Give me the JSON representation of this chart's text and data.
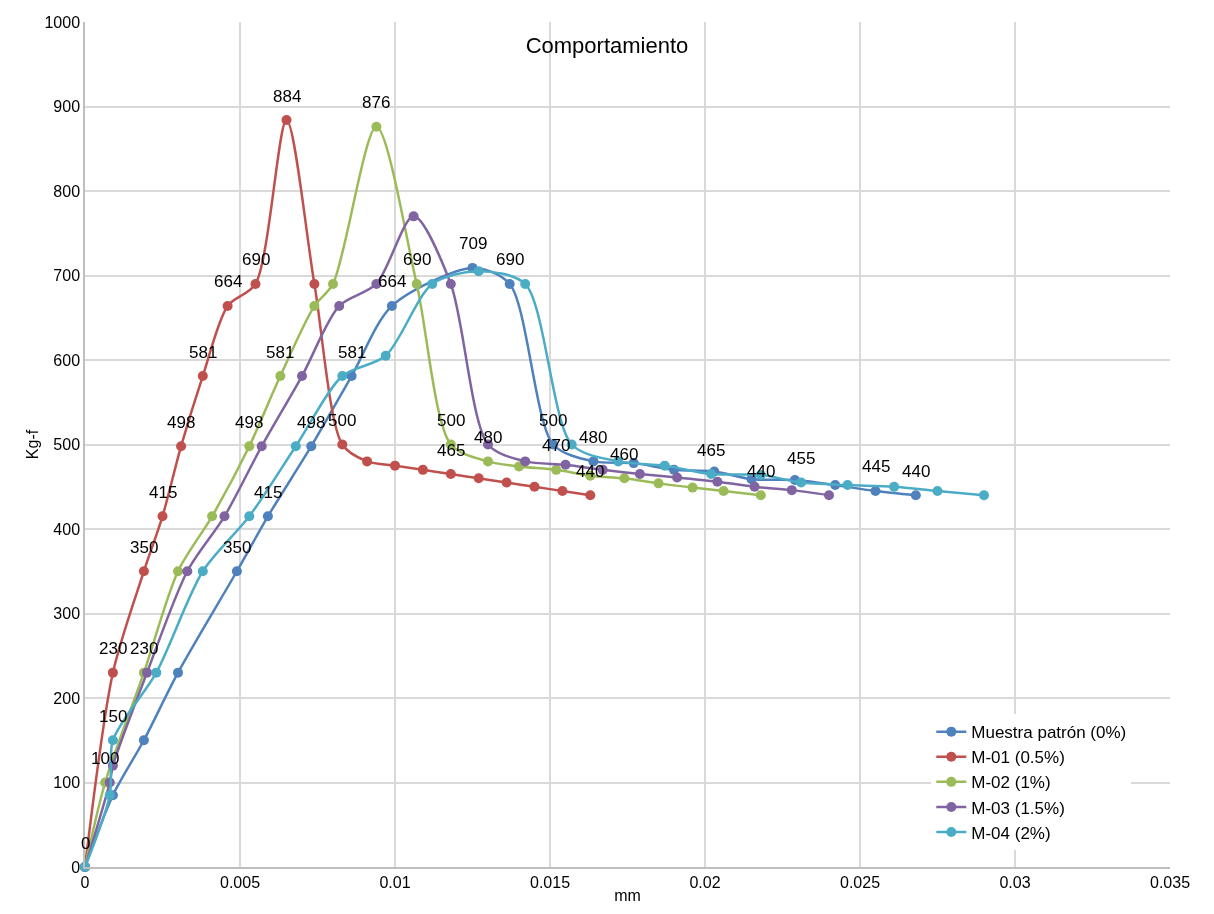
{
  "chart_data": {
    "type": "line",
    "title": "Comportamiento",
    "xlabel": "mm",
    "ylabel": "Kg-f",
    "xlim": [
      0,
      0.035
    ],
    "xticks": [
      0,
      0.005,
      0.01,
      0.015,
      0.02,
      0.025,
      0.03,
      0.035
    ],
    "ylim": [
      0,
      1000
    ],
    "yticks": [
      0,
      100,
      200,
      300,
      400,
      500,
      600,
      700,
      800,
      900,
      1000
    ],
    "grid": true,
    "legend": "bottom right",
    "marker": "circle",
    "line_style": "solid",
    "series": [
      {
        "name": "Muestra patrón (0%)",
        "color": "#4f81bd",
        "x": [
          0,
          0.0009,
          0.0019,
          0.003,
          0.0049,
          0.0059,
          0.0073,
          0.0086,
          0.0099,
          0.0125,
          0.0137,
          0.0151,
          0.0164,
          0.0177,
          0.019,
          0.0203,
          0.0215,
          0.0229,
          0.0242,
          0.0255,
          0.0268
        ],
        "values": [
          0,
          85,
          150,
          230,
          350,
          415,
          498,
          581,
          664,
          709,
          690,
          500,
          480,
          478,
          470,
          468,
          459,
          458,
          452,
          445,
          440
        ],
        "value_labels": [
          null,
          null,
          null,
          null,
          "350",
          "415",
          "498",
          "581",
          "664",
          "709",
          "690",
          "500",
          "480",
          null,
          null,
          null,
          null,
          null,
          null,
          "445",
          "440"
        ]
      },
      {
        "name": "M-01 (0.5%)",
        "color": "#c0504d",
        "x": [
          0,
          0.0009,
          0.0019,
          0.0025,
          0.0031,
          0.0038,
          0.0046,
          0.0055,
          0.0065,
          0.0074,
          0.0083,
          0.0091,
          0.01,
          0.0109,
          0.0118,
          0.0127,
          0.0136,
          0.0145,
          0.0154,
          0.0163
        ],
        "values": [
          0,
          230,
          350,
          415,
          498,
          581,
          664,
          690,
          884,
          690,
          500,
          480,
          475,
          470,
          465,
          460,
          455,
          450,
          445,
          440
        ],
        "value_labels": [
          "0",
          "230",
          "350",
          "415",
          "498",
          "581",
          "664",
          "690",
          "884",
          null,
          "500",
          null,
          null,
          null,
          "465",
          null,
          null,
          null,
          null,
          "440"
        ]
      },
      {
        "name": "M-02 (1%)",
        "color": "#9bbb59",
        "x": [
          0,
          0.00065,
          0.0019,
          0.003,
          0.0041,
          0.0053,
          0.0063,
          0.0074,
          0.008,
          0.0094,
          0.0107,
          0.0118,
          0.013,
          0.014,
          0.0152,
          0.0163,
          0.0174,
          0.0185,
          0.0196,
          0.0206,
          0.0218
        ],
        "values": [
          0,
          100,
          230,
          350,
          415,
          498,
          581,
          664,
          690,
          876,
          690,
          500,
          480,
          474,
          470,
          463,
          460,
          454,
          449,
          445,
          440
        ],
        "value_labels": [
          null,
          "100",
          "230",
          null,
          null,
          "498",
          "581",
          null,
          null,
          "876",
          "690",
          "500",
          "480",
          null,
          "470",
          null,
          "460",
          null,
          null,
          null,
          "440"
        ]
      },
      {
        "name": "M-03 (1.5%)",
        "color": "#8064a2",
        "x": [
          0,
          0.0008,
          0.0009,
          0.002,
          0.0033,
          0.0045,
          0.0057,
          0.007,
          0.0082,
          0.0094,
          0.0106,
          0.0118,
          0.013,
          0.0142,
          0.0155,
          0.0167,
          0.0179,
          0.0191,
          0.0204,
          0.0216,
          0.0228,
          0.024
        ],
        "values": [
          0,
          100,
          120,
          230,
          350,
          415,
          498,
          581,
          664,
          690,
          770,
          690,
          500,
          480,
          476,
          470,
          465,
          461,
          456,
          450,
          446,
          440
        ]
      },
      {
        "name": "M-04 (2%)",
        "color": "#4bacc6",
        "x": [
          0,
          0.0008,
          0.0009,
          0.0023,
          0.0038,
          0.0053,
          0.0068,
          0.0083,
          0.0097,
          0.0112,
          0.0127,
          0.0142,
          0.0157,
          0.0172,
          0.0187,
          0.0202,
          0.0218,
          0.0231,
          0.0246,
          0.0261,
          0.0275,
          0.029
        ],
        "values": [
          0,
          85,
          150,
          230,
          350,
          415,
          498,
          581,
          605,
          690,
          705,
          690,
          500,
          480,
          475,
          465,
          464,
          455,
          452,
          450,
          445,
          440
        ],
        "value_labels": [
          null,
          null,
          "150",
          null,
          null,
          null,
          null,
          null,
          null,
          null,
          null,
          null,
          null,
          null,
          null,
          "465",
          null,
          "455",
          null,
          null,
          null,
          null
        ]
      }
    ]
  }
}
